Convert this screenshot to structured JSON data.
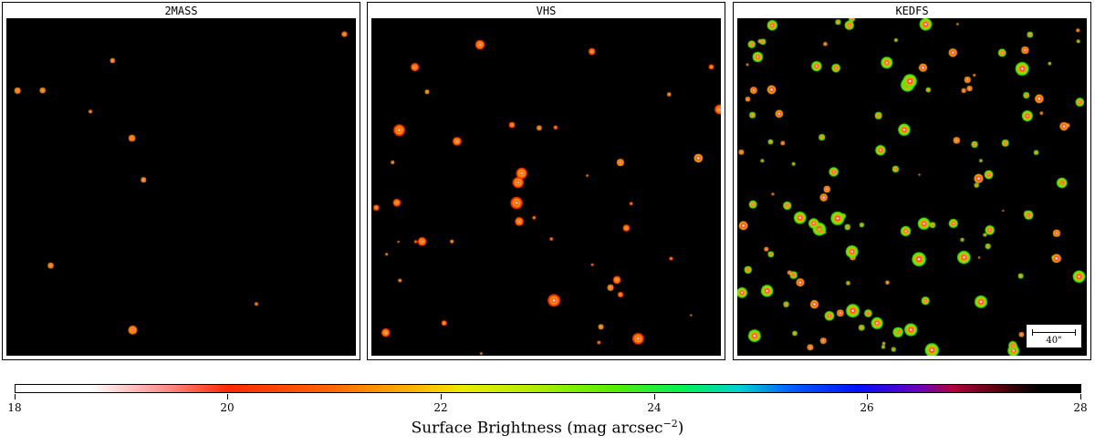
{
  "panels": [
    {
      "title": "2MASS"
    },
    {
      "title": "VHS"
    },
    {
      "title": "KEDFS"
    }
  ],
  "scale_bar": {
    "label": "40\""
  },
  "colorbar": {
    "ticks": [
      "18",
      "20",
      "22",
      "24",
      "26",
      "28"
    ],
    "label": "Surface Brightness (mag arcsec",
    "label_exponent": "−2",
    "label_close": ")"
  }
}
